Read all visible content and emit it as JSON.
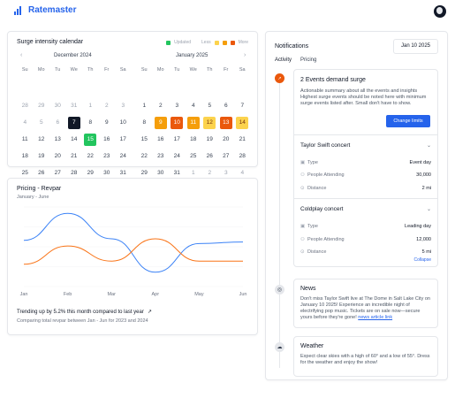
{
  "app": {
    "title": "Ratemaster",
    "logo_icon": "bar-chart-icon",
    "accent": "#2563eb"
  },
  "calendar": {
    "title": "Surge intensity calendar",
    "legend": {
      "updated": "Updated",
      "less": "Less",
      "more": "More"
    },
    "colors": {
      "updated": "#22c55e",
      "l1": "#fcd34d",
      "l2": "#f59e0b",
      "l3": "#ea580c"
    },
    "weekdays": [
      "Su",
      "Mo",
      "Tu",
      "We",
      "Th",
      "Fr",
      "Sa"
    ],
    "months": [
      {
        "name": "December 2024",
        "days": [
          {
            "d": "28",
            "s": "muted"
          },
          {
            "d": "29",
            "s": "muted"
          },
          {
            "d": "30",
            "s": "muted"
          },
          {
            "d": "31",
            "s": "muted"
          },
          {
            "d": "1",
            "s": "muted"
          },
          {
            "d": "2",
            "s": "muted"
          },
          {
            "d": "3",
            "s": "muted"
          },
          {
            "d": "4",
            "s": "muted"
          },
          {
            "d": "5",
            "s": "muted"
          },
          {
            "d": "6",
            "s": "muted"
          },
          {
            "d": "7",
            "s": "today"
          },
          {
            "d": "8",
            "s": ""
          },
          {
            "d": "9",
            "s": ""
          },
          {
            "d": "10",
            "s": ""
          },
          {
            "d": "11",
            "s": ""
          },
          {
            "d": "12",
            "s": ""
          },
          {
            "d": "13",
            "s": ""
          },
          {
            "d": "14",
            "s": ""
          },
          {
            "d": "15",
            "s": "updated"
          },
          {
            "d": "16",
            "s": ""
          },
          {
            "d": "17",
            "s": ""
          },
          {
            "d": "18",
            "s": ""
          },
          {
            "d": "19",
            "s": ""
          },
          {
            "d": "20",
            "s": ""
          },
          {
            "d": "21",
            "s": ""
          },
          {
            "d": "22",
            "s": ""
          },
          {
            "d": "23",
            "s": ""
          },
          {
            "d": "24",
            "s": ""
          },
          {
            "d": "25",
            "s": ""
          },
          {
            "d": "26",
            "s": ""
          },
          {
            "d": "27",
            "s": ""
          },
          {
            "d": "28",
            "s": ""
          },
          {
            "d": "29",
            "s": ""
          },
          {
            "d": "30",
            "s": ""
          },
          {
            "d": "31",
            "s": ""
          }
        ]
      },
      {
        "name": "January 2025",
        "days": [
          {
            "d": "1",
            "s": ""
          },
          {
            "d": "2",
            "s": ""
          },
          {
            "d": "3",
            "s": ""
          },
          {
            "d": "4",
            "s": ""
          },
          {
            "d": "5",
            "s": ""
          },
          {
            "d": "6",
            "s": ""
          },
          {
            "d": "7",
            "s": ""
          },
          {
            "d": "8",
            "s": ""
          },
          {
            "d": "9",
            "s": "l2"
          },
          {
            "d": "10",
            "s": "l3"
          },
          {
            "d": "11",
            "s": "l2"
          },
          {
            "d": "12",
            "s": "l1"
          },
          {
            "d": "13",
            "s": "l3"
          },
          {
            "d": "14",
            "s": "l1"
          },
          {
            "d": "15",
            "s": ""
          },
          {
            "d": "16",
            "s": ""
          },
          {
            "d": "17",
            "s": ""
          },
          {
            "d": "18",
            "s": ""
          },
          {
            "d": "19",
            "s": ""
          },
          {
            "d": "20",
            "s": ""
          },
          {
            "d": "21",
            "s": ""
          },
          {
            "d": "22",
            "s": ""
          },
          {
            "d": "23",
            "s": ""
          },
          {
            "d": "24",
            "s": ""
          },
          {
            "d": "25",
            "s": ""
          },
          {
            "d": "26",
            "s": ""
          },
          {
            "d": "27",
            "s": ""
          },
          {
            "d": "28",
            "s": ""
          },
          {
            "d": "29",
            "s": ""
          },
          {
            "d": "30",
            "s": ""
          },
          {
            "d": "31",
            "s": ""
          },
          {
            "d": "1",
            "s": "muted"
          },
          {
            "d": "2",
            "s": "muted"
          },
          {
            "d": "3",
            "s": "muted"
          },
          {
            "d": "4",
            "s": "muted"
          }
        ]
      }
    ]
  },
  "pricing": {
    "title": "Pricing - Revpar",
    "subtitle": "January - June",
    "trend_text": "Trending up by 5.2% this month compared to last year",
    "trend_sub": "Comparing total revpar between Jan - Jun for 2023 and 2024"
  },
  "chart_data": {
    "type": "line",
    "x": [
      "Jan",
      "Feb",
      "Mar",
      "Apr",
      "May",
      "Jun"
    ],
    "ylim": [
      0,
      100
    ],
    "grid": true,
    "series": [
      {
        "color": "#3b82f6",
        "values": [
          58,
          92,
          60,
          18,
          54,
          56
        ]
      },
      {
        "color": "#f97316",
        "values": [
          28,
          51,
          32,
          60,
          32,
          32
        ]
      }
    ]
  },
  "notifications": {
    "title": "Notifications",
    "date": "Jan 10 2025",
    "tabs": [
      "Activity",
      "Pricing"
    ],
    "surge": {
      "title": "2 Events demand surge",
      "desc": "Actionable summary about all the events and insights Highest surge events should be noted here with minimum surge events listed after. Small don't have to show.",
      "button": "Change limits",
      "labels": {
        "type": "Type",
        "people": "People Attending",
        "distance": "Distance"
      },
      "events": [
        {
          "name": "Taylor Swift concert",
          "type": "Event day",
          "people": "30,000",
          "distance": "2 mi"
        },
        {
          "name": "Coldplay concert",
          "type": "Leading day",
          "people": "12,000",
          "distance": "5 mi"
        }
      ],
      "collapse": "Collapse"
    },
    "news": {
      "title": "News",
      "body": "Don't miss Taylor Swift live at The Dome in Salt Lake City on January 10 2025! Experience an incredible night of electrifying pop music. Tickets are on sale now—secure yours before they're gone!",
      "link": "news article link"
    },
    "weather": {
      "title": "Weather",
      "body": "Expect clear skies with a high of 60° and a low of 55°. Dress for the weather and enjoy the show!"
    }
  }
}
